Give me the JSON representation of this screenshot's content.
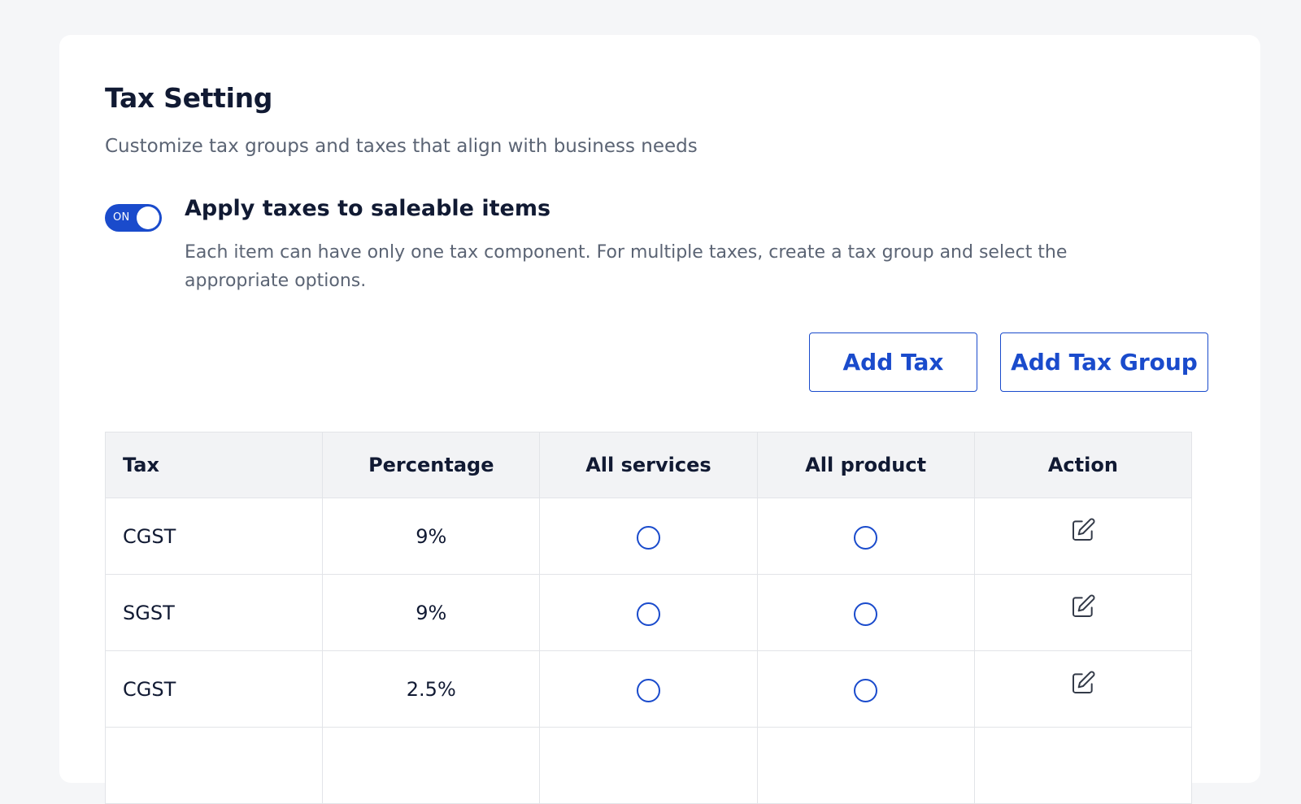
{
  "page": {
    "title": "Tax Setting",
    "subtitle": "Customize tax groups and taxes that align with business needs"
  },
  "apply_taxes": {
    "toggle_state": "ON",
    "title": "Apply taxes to saleable items",
    "description": "Each item can have only one tax component. For multiple taxes, create a tax group and select the appropriate options."
  },
  "actions": {
    "add_tax_label": "Add Tax",
    "add_tax_group_label": "Add Tax Group"
  },
  "table": {
    "headers": [
      "Tax",
      "Percentage",
      "All services",
      "All product",
      "Action"
    ],
    "rows": [
      {
        "tax": "CGST",
        "percentage": "9%"
      },
      {
        "tax": "SGST",
        "percentage": "9%"
      },
      {
        "tax": "CGST",
        "percentage": "2.5%"
      },
      {
        "tax": "",
        "percentage": ""
      }
    ]
  },
  "icons": {
    "action": "edit-icon",
    "selection": "radio-button"
  },
  "colors": {
    "accent": "#1a4bcc",
    "text_primary": "#111a33",
    "text_secondary": "#5b6474",
    "page_background": "#f5f6f8",
    "header_background": "#f2f3f5"
  }
}
